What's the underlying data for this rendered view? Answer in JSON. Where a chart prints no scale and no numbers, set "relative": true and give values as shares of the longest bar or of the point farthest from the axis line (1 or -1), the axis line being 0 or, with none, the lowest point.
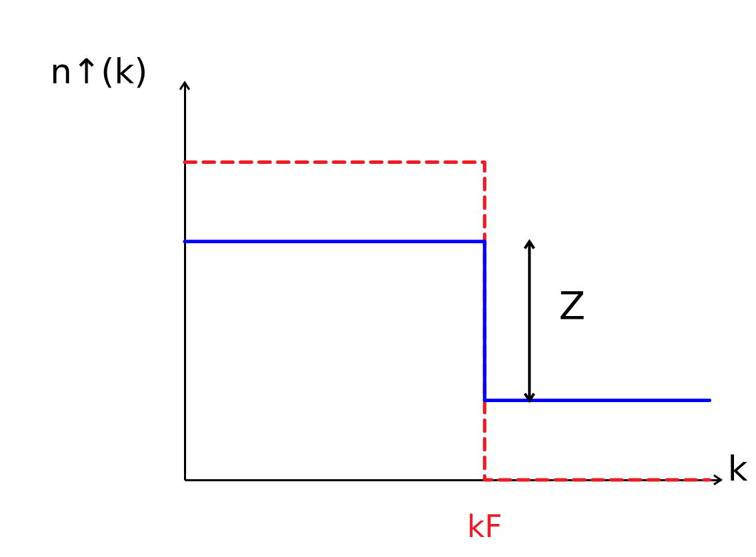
{
  "chart_data": {
    "type": "step",
    "relative": true,
    "xlabel": "k",
    "ylabel": "n↑(k)",
    "categories": [
      null,
      null,
      null,
      null,
      null,
      null,
      null,
      null
    ],
    "series": [
      {
        "color": "#ed1c24",
        "line_style": "dashed",
        "values": [
          1,
          1,
          1,
          1,
          0,
          0,
          0,
          0
        ]
      },
      {
        "color": "#0000ff",
        "line_style": "solid",
        "values": [
          0.75,
          0.75,
          0.75,
          0.75,
          0.25,
          0.25,
          0.25,
          0.25
        ]
      }
    ],
    "annotations": [
      "kF",
      "Z"
    ]
  }
}
